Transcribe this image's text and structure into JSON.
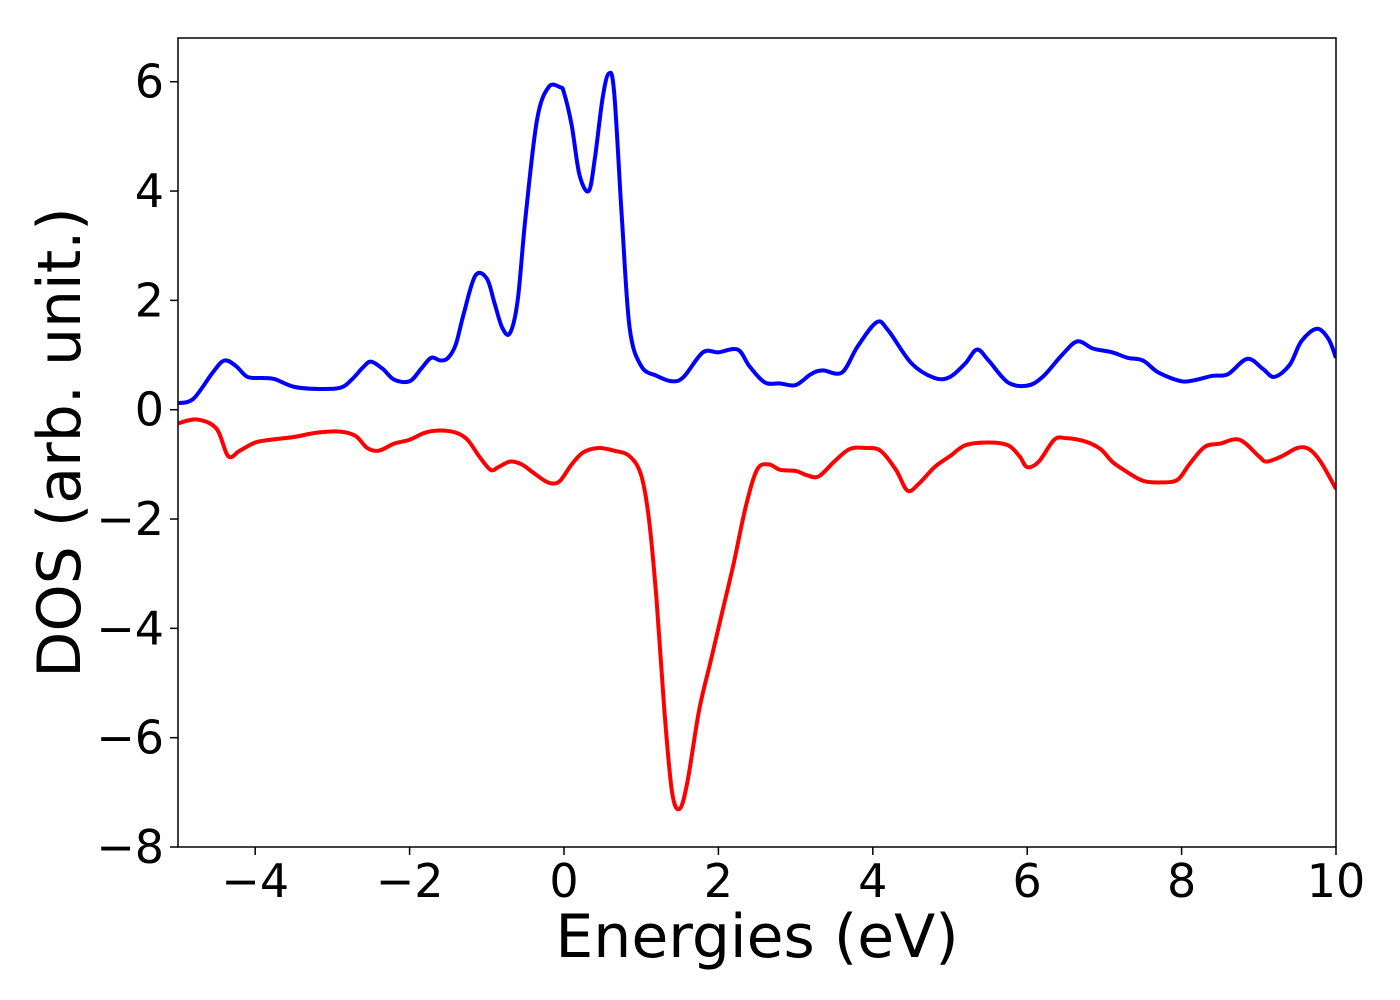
{
  "chart_data": {
    "type": "line",
    "xlabel": "Energies (eV)",
    "ylabel": "DOS (arb. unit.)",
    "xlim": [
      -5,
      10
    ],
    "ylim": [
      -8,
      6.8
    ],
    "xticks": [
      -4,
      -2,
      0,
      2,
      4,
      6,
      8,
      10
    ],
    "yticks": [
      -8,
      -6,
      -4,
      -2,
      0,
      2,
      4,
      6
    ],
    "xtick_labels": [
      "−4",
      "−2",
      "0",
      "2",
      "4",
      "6",
      "8",
      "10"
    ],
    "ytick_labels": [
      "−8",
      "−6",
      "−4",
      "−2",
      "0",
      "2",
      "4",
      "6"
    ],
    "grid": false,
    "legend": false,
    "series": [
      {
        "color": "#0000ff",
        "x": [
          -5.0,
          -4.8,
          -4.55,
          -4.4,
          -4.25,
          -4.1,
          -3.9,
          -3.75,
          -3.5,
          -3.2,
          -2.9,
          -2.75,
          -2.6,
          -2.5,
          -2.35,
          -2.2,
          -2.0,
          -1.85,
          -1.72,
          -1.6,
          -1.5,
          -1.4,
          -1.3,
          -1.15,
          -1.0,
          -0.9,
          -0.8,
          -0.7,
          -0.6,
          -0.5,
          -0.35,
          -0.2,
          -0.05,
          0.0,
          0.1,
          0.2,
          0.32,
          0.4,
          0.5,
          0.58,
          0.65,
          0.75,
          0.85,
          1.0,
          1.2,
          1.4,
          1.55,
          1.8,
          2.0,
          2.25,
          2.4,
          2.6,
          2.8,
          3.0,
          3.2,
          3.35,
          3.6,
          3.8,
          4.05,
          4.2,
          4.5,
          4.8,
          5.0,
          5.2,
          5.35,
          5.5,
          5.75,
          6.0,
          6.2,
          6.45,
          6.65,
          6.85,
          7.1,
          7.3,
          7.5,
          7.7,
          8.0,
          8.2,
          8.4,
          8.6,
          8.85,
          9.05,
          9.2,
          9.4,
          9.55,
          9.75,
          9.9,
          10.0
        ],
        "y": [
          0.12,
          0.2,
          0.68,
          0.9,
          0.8,
          0.6,
          0.58,
          0.56,
          0.42,
          0.38,
          0.4,
          0.55,
          0.78,
          0.88,
          0.75,
          0.55,
          0.52,
          0.75,
          0.95,
          0.9,
          0.95,
          1.2,
          1.75,
          2.45,
          2.4,
          1.95,
          1.5,
          1.4,
          2.0,
          3.5,
          5.3,
          5.9,
          5.9,
          5.8,
          5.2,
          4.3,
          4.0,
          4.6,
          5.7,
          6.15,
          5.8,
          3.5,
          1.5,
          0.8,
          0.62,
          0.52,
          0.6,
          1.05,
          1.05,
          1.1,
          0.8,
          0.5,
          0.48,
          0.45,
          0.65,
          0.72,
          0.68,
          1.15,
          1.6,
          1.45,
          0.85,
          0.58,
          0.6,
          0.85,
          1.1,
          0.9,
          0.5,
          0.44,
          0.6,
          1.0,
          1.25,
          1.12,
          1.05,
          0.95,
          0.9,
          0.68,
          0.52,
          0.55,
          0.62,
          0.65,
          0.93,
          0.75,
          0.6,
          0.82,
          1.25,
          1.48,
          1.3,
          0.95
        ]
      },
      {
        "color": "#ff0000",
        "x": [
          -5.0,
          -4.75,
          -4.5,
          -4.35,
          -4.2,
          -4.0,
          -3.8,
          -3.5,
          -3.2,
          -2.9,
          -2.7,
          -2.55,
          -2.4,
          -2.2,
          -2.0,
          -1.8,
          -1.6,
          -1.4,
          -1.25,
          -1.1,
          -0.95,
          -0.85,
          -0.7,
          -0.55,
          -0.4,
          -0.25,
          -0.15,
          -0.05,
          0.1,
          0.25,
          0.45,
          0.65,
          0.85,
          1.0,
          1.1,
          1.2,
          1.3,
          1.4,
          1.5,
          1.6,
          1.75,
          1.9,
          2.05,
          2.2,
          2.35,
          2.5,
          2.65,
          2.8,
          3.0,
          3.15,
          3.3,
          3.5,
          3.7,
          3.9,
          4.1,
          4.3,
          4.45,
          4.6,
          4.8,
          5.0,
          5.2,
          5.5,
          5.75,
          5.9,
          6.0,
          6.15,
          6.35,
          6.5,
          6.75,
          6.95,
          7.1,
          7.25,
          7.5,
          7.75,
          7.95,
          8.1,
          8.3,
          8.5,
          8.75,
          9.0,
          9.1,
          9.3,
          9.5,
          9.65,
          9.8,
          10.0
        ],
        "y": [
          -0.25,
          -0.18,
          -0.35,
          -0.85,
          -0.75,
          -0.6,
          -0.55,
          -0.5,
          -0.42,
          -0.4,
          -0.48,
          -0.7,
          -0.75,
          -0.62,
          -0.55,
          -0.42,
          -0.38,
          -0.42,
          -0.55,
          -0.85,
          -1.1,
          -1.05,
          -0.95,
          -1.0,
          -1.15,
          -1.3,
          -1.35,
          -1.3,
          -1.0,
          -0.78,
          -0.7,
          -0.75,
          -0.85,
          -1.2,
          -2.0,
          -3.5,
          -5.5,
          -7.0,
          -7.3,
          -6.8,
          -5.5,
          -4.6,
          -3.7,
          -2.8,
          -1.8,
          -1.1,
          -1.0,
          -1.1,
          -1.12,
          -1.2,
          -1.22,
          -0.95,
          -0.72,
          -0.7,
          -0.75,
          -1.1,
          -1.48,
          -1.35,
          -1.05,
          -0.85,
          -0.65,
          -0.6,
          -0.65,
          -0.85,
          -1.05,
          -0.95,
          -0.55,
          -0.52,
          -0.58,
          -0.72,
          -0.95,
          -1.1,
          -1.3,
          -1.33,
          -1.28,
          -1.0,
          -0.68,
          -0.62,
          -0.55,
          -0.85,
          -0.95,
          -0.85,
          -0.7,
          -0.72,
          -0.95,
          -1.45
        ]
      }
    ]
  }
}
